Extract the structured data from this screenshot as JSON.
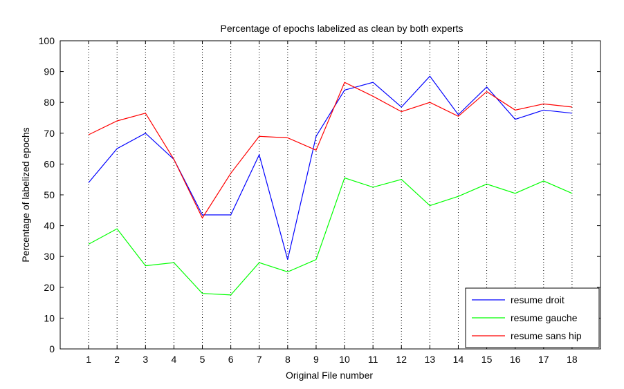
{
  "chart_data": {
    "type": "line",
    "title": "Percentage of epochs labelized as clean by both experts",
    "xlabel": "Original File number",
    "ylabel": "Percentage of labelized epochs",
    "x": [
      1,
      2,
      3,
      4,
      5,
      6,
      7,
      8,
      9,
      10,
      11,
      12,
      13,
      14,
      15,
      16,
      17,
      18
    ],
    "xlim": [
      0,
      19
    ],
    "ylim": [
      0,
      100
    ],
    "x_ticks": [
      1,
      2,
      3,
      4,
      5,
      6,
      7,
      8,
      9,
      10,
      11,
      12,
      13,
      14,
      15,
      16,
      17,
      18
    ],
    "y_ticks": [
      0,
      10,
      20,
      30,
      40,
      50,
      60,
      70,
      80,
      90,
      100
    ],
    "vertical_gridlines": "dotted at each x tick",
    "legend_position": "bottom-right",
    "series": [
      {
        "name": "resume droit",
        "color": "#0000ff",
        "values": [
          54,
          65,
          70,
          61.5,
          43.5,
          43.5,
          63,
          29,
          69,
          84,
          86.5,
          78.5,
          88.5,
          76,
          85,
          74.5,
          77.5,
          76.5
        ]
      },
      {
        "name": "resume gauche",
        "color": "#00ff00",
        "values": [
          34,
          39,
          27,
          28,
          18,
          17.5,
          28,
          25,
          29,
          55.5,
          52.5,
          55,
          46.5,
          49.5,
          53.5,
          50.5,
          54.5,
          50.5
        ]
      },
      {
        "name": "resume sans hip",
        "color": "#ff0000",
        "values": [
          69.5,
          74,
          76.5,
          61.5,
          42.5,
          57,
          69,
          68.5,
          64.5,
          86.5,
          82,
          77,
          80,
          75.5,
          83.5,
          77.5,
          79.5,
          78.5
        ]
      }
    ]
  }
}
